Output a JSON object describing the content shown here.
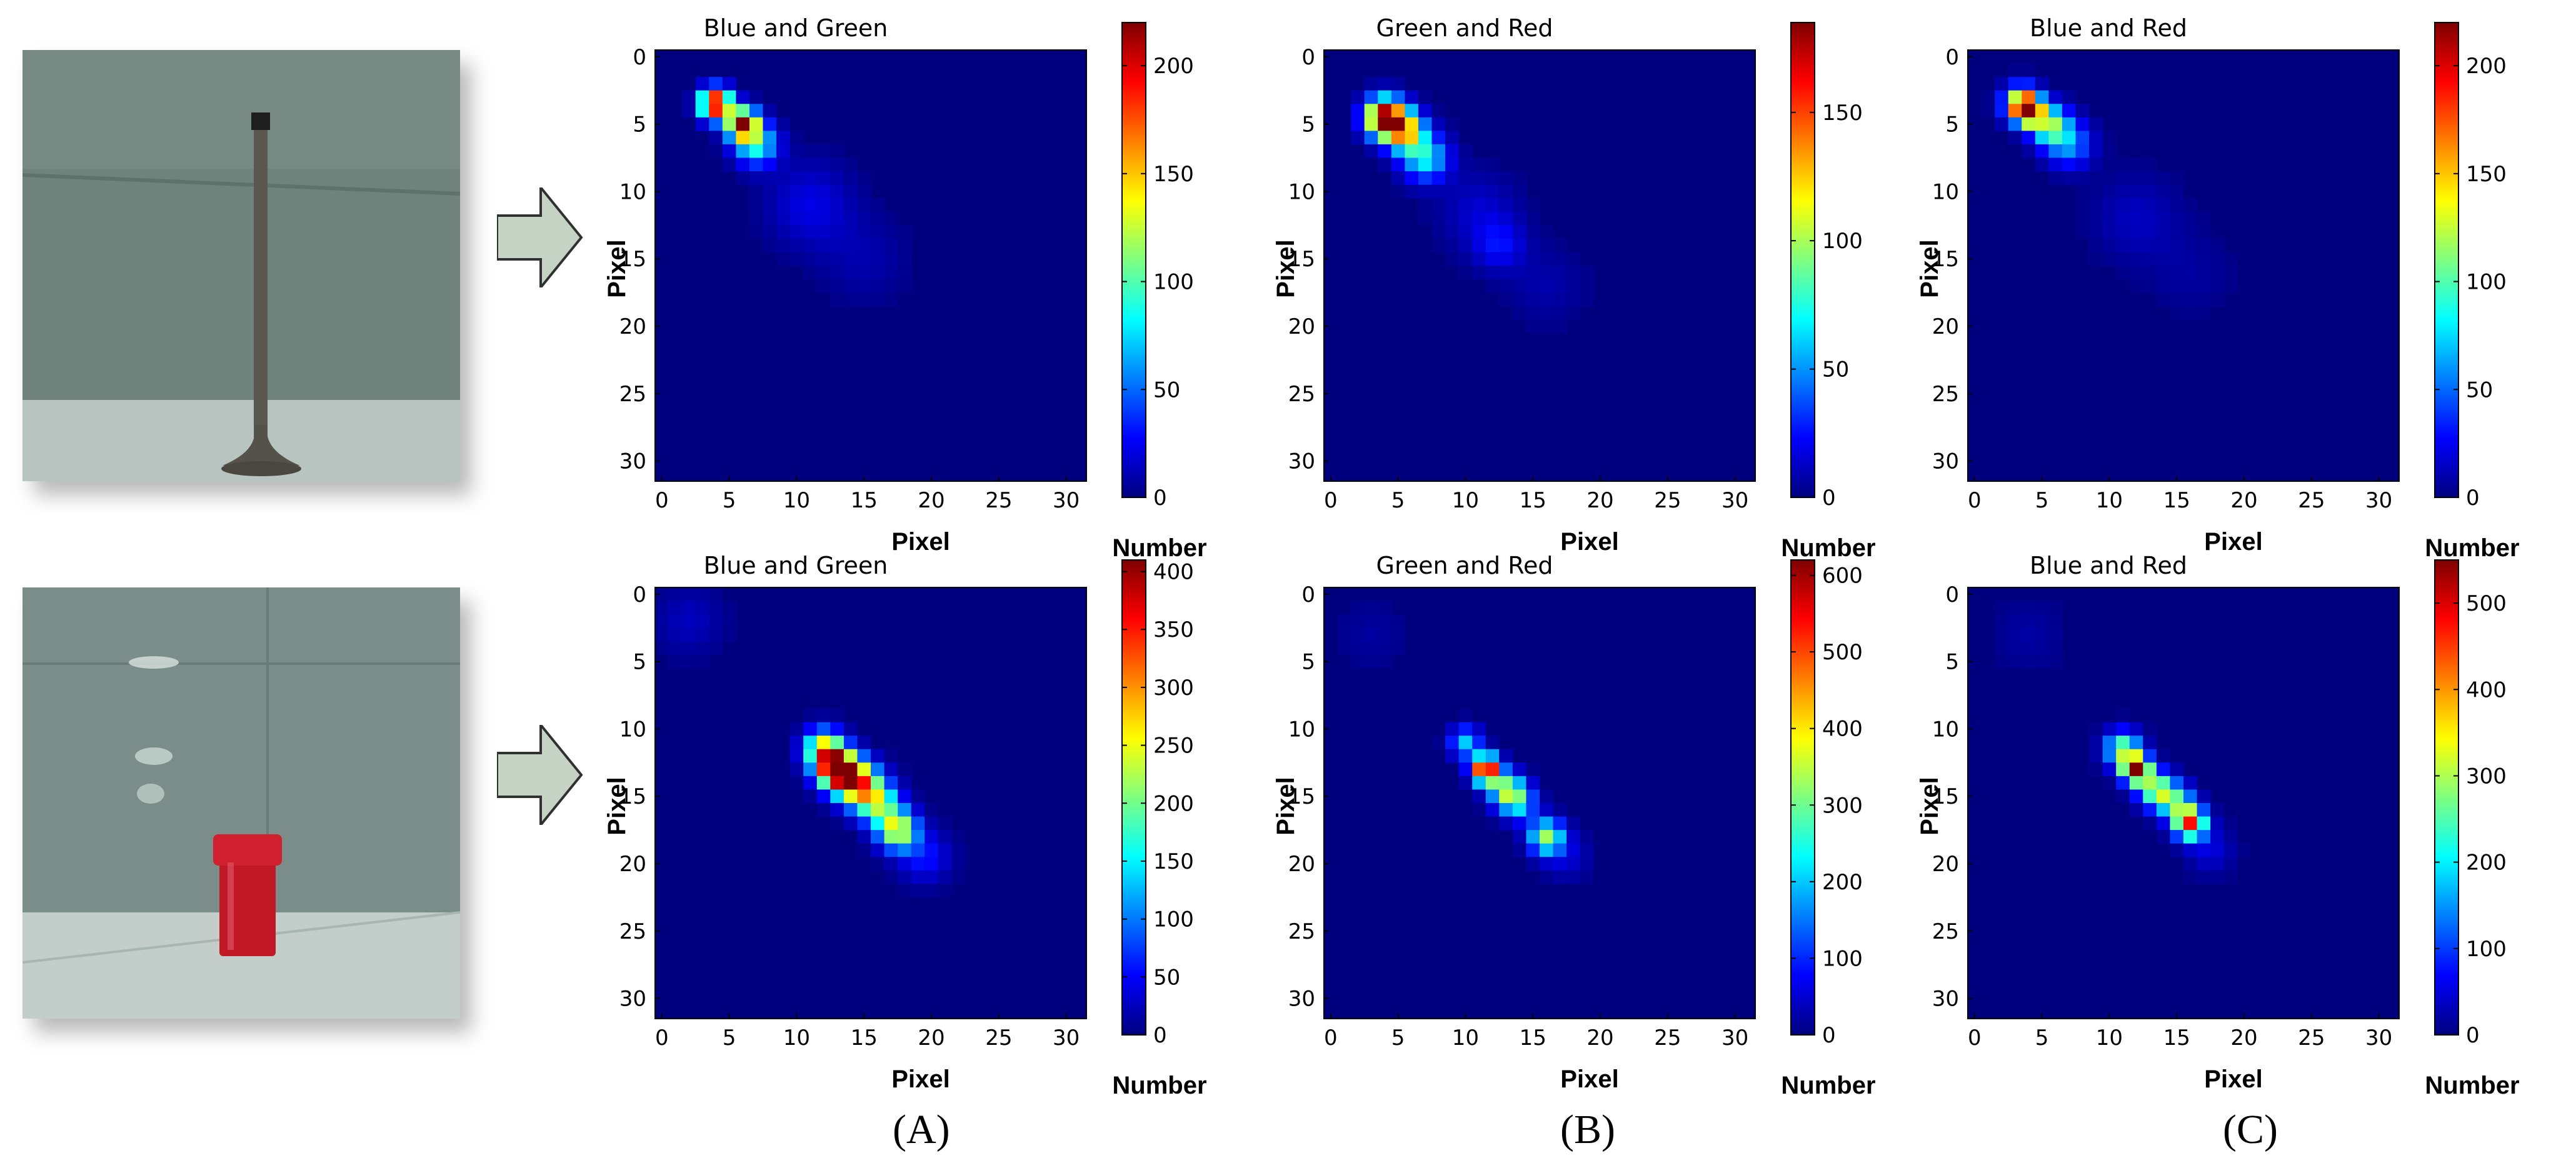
{
  "palette": {
    "colormap_stops": [
      "#00007f",
      "#0000ff",
      "#007fff",
      "#00ffff",
      "#7fff7f",
      "#ffff00",
      "#ff7f00",
      "#ff0000",
      "#7f0000"
    ]
  },
  "photos": [
    {
      "subject": "metal-valve",
      "wall": "#6f827c",
      "floor": "#b7c4c0",
      "object": "#5a5650"
    },
    {
      "subject": "red-cylinder-container",
      "wall": "#7a8d88",
      "floor": "#c3ceca",
      "object": "#c01825"
    }
  ],
  "captions": [
    "(A)",
    "(B)",
    "(C)"
  ],
  "chart_data": [
    {
      "type": "heatmap",
      "row": 1,
      "column": "A",
      "title": "Blue and Green",
      "xlabel": "Pixel",
      "ylabel": "Pixel",
      "colorbar_label": "Number",
      "xlim": [
        0,
        31
      ],
      "ylim": [
        31,
        0
      ],
      "xticks": [
        0,
        5,
        10,
        15,
        20,
        25,
        30
      ],
      "yticks": [
        0,
        5,
        10,
        15,
        20,
        25,
        30
      ],
      "colorbar_range": [
        0,
        220
      ],
      "colorbar_ticks": [
        0,
        50,
        100,
        150,
        200
      ],
      "peaks": [
        {
          "x": 4,
          "y": 3.5,
          "value": 220,
          "spread": 0.8
        },
        {
          "x": 6,
          "y": 5,
          "value": 200,
          "spread": 0.8
        },
        {
          "x": 7,
          "y": 6.5,
          "value": 90,
          "spread": 1.1
        },
        {
          "x": 11,
          "y": 11,
          "value": 22,
          "spread": 2.2
        },
        {
          "x": 15,
          "y": 15,
          "value": 10,
          "spread": 2.2
        }
      ]
    },
    {
      "type": "heatmap",
      "row": 1,
      "column": "B",
      "title": "Green and Red",
      "xlabel": "Pixel",
      "ylabel": "Pixel",
      "colorbar_label": "Number",
      "xlim": [
        0,
        31
      ],
      "ylim": [
        31,
        0
      ],
      "xticks": [
        0,
        5,
        10,
        15,
        20,
        25,
        30
      ],
      "yticks": [
        0,
        5,
        10,
        15,
        20,
        25,
        30
      ],
      "colorbar_range": [
        0,
        185
      ],
      "colorbar_ticks": [
        0,
        50,
        100,
        150
      ],
      "peaks": [
        {
          "x": 4,
          "y": 4.5,
          "value": 185,
          "spread": 1.0
        },
        {
          "x": 5.5,
          "y": 5.5,
          "value": 120,
          "spread": 1.0
        },
        {
          "x": 7,
          "y": 7.5,
          "value": 70,
          "spread": 1.2
        },
        {
          "x": 12.5,
          "y": 14,
          "value": 22,
          "spread": 1.3
        },
        {
          "x": 11,
          "y": 11.5,
          "value": 14,
          "spread": 2.0
        },
        {
          "x": 16,
          "y": 17,
          "value": 8,
          "spread": 2.0
        }
      ]
    },
    {
      "type": "heatmap",
      "row": 1,
      "column": "C",
      "title": "Blue and Red",
      "xlabel": "Pixel",
      "ylabel": "Pixel",
      "colorbar_label": "Number",
      "xlim": [
        0,
        31
      ],
      "ylim": [
        31,
        0
      ],
      "xticks": [
        0,
        5,
        10,
        15,
        20,
        25,
        30
      ],
      "yticks": [
        0,
        5,
        10,
        15,
        20,
        25,
        30
      ],
      "colorbar_range": [
        0,
        220
      ],
      "colorbar_ticks": [
        0,
        50,
        100,
        150,
        200
      ],
      "peaks": [
        {
          "x": 3.5,
          "y": 3.5,
          "value": 150,
          "spread": 0.9
        },
        {
          "x": 4,
          "y": 4,
          "value": 220,
          "spread": 0.6
        },
        {
          "x": 5.5,
          "y": 5,
          "value": 110,
          "spread": 1.0
        },
        {
          "x": 7,
          "y": 6.5,
          "value": 60,
          "spread": 1.2
        },
        {
          "x": 12,
          "y": 12,
          "value": 14,
          "spread": 2.2
        },
        {
          "x": 16,
          "y": 16,
          "value": 7,
          "spread": 2.2
        }
      ]
    },
    {
      "type": "heatmap",
      "row": 2,
      "column": "A",
      "title": "Blue and Green",
      "xlabel": "Pixel",
      "ylabel": "Pixel",
      "colorbar_label": "Number",
      "xlim": [
        0,
        31
      ],
      "ylim": [
        31,
        0
      ],
      "xticks": [
        0,
        5,
        10,
        15,
        20,
        25,
        30
      ],
      "yticks": [
        0,
        5,
        10,
        15,
        20,
        25,
        30
      ],
      "colorbar_range": [
        0,
        410
      ],
      "colorbar_ticks": [
        0,
        50,
        100,
        150,
        200,
        250,
        300,
        350,
        400
      ],
      "peaks": [
        {
          "x": 12,
          "y": 11.5,
          "value": 250,
          "spread": 1.0
        },
        {
          "x": 13,
          "y": 13,
          "value": 410,
          "spread": 1.0
        },
        {
          "x": 14.5,
          "y": 14,
          "value": 300,
          "spread": 1.1
        },
        {
          "x": 16,
          "y": 15.5,
          "value": 200,
          "spread": 1.1
        },
        {
          "x": 17.5,
          "y": 17.5,
          "value": 250,
          "spread": 1.0
        },
        {
          "x": 19.5,
          "y": 19.5,
          "value": 60,
          "spread": 1.3
        },
        {
          "x": 2,
          "y": 2,
          "value": 25,
          "spread": 1.8
        }
      ]
    },
    {
      "type": "heatmap",
      "row": 2,
      "column": "B",
      "title": "Green and Red",
      "xlabel": "Pixel",
      "ylabel": "Pixel",
      "colorbar_label": "Number",
      "xlim": [
        0,
        31
      ],
      "ylim": [
        31,
        0
      ],
      "xticks": [
        0,
        5,
        10,
        15,
        20,
        25,
        30
      ],
      "yticks": [
        0,
        5,
        10,
        15,
        20,
        25,
        30
      ],
      "colorbar_range": [
        0,
        620
      ],
      "colorbar_ticks": [
        0,
        100,
        200,
        300,
        400,
        500,
        600
      ],
      "peaks": [
        {
          "x": 10,
          "y": 11,
          "value": 200,
          "spread": 0.8
        },
        {
          "x": 11.5,
          "y": 13,
          "value": 620,
          "spread": 0.7
        },
        {
          "x": 13,
          "y": 14.5,
          "value": 300,
          "spread": 0.9
        },
        {
          "x": 14,
          "y": 15.5,
          "value": 200,
          "spread": 0.9
        },
        {
          "x": 16,
          "y": 18,
          "value": 320,
          "spread": 0.9
        },
        {
          "x": 17.5,
          "y": 19.5,
          "value": 50,
          "spread": 1.2
        },
        {
          "x": 3,
          "y": 3,
          "value": 20,
          "spread": 1.8
        }
      ]
    },
    {
      "type": "heatmap",
      "row": 2,
      "column": "C",
      "title": "Blue and Red",
      "xlabel": "Pixel",
      "ylabel": "Pixel",
      "colorbar_label": "Number",
      "xlim": [
        0,
        31
      ],
      "ylim": [
        31,
        0
      ],
      "xticks": [
        0,
        5,
        10,
        15,
        20,
        25,
        30
      ],
      "yticks": [
        0,
        5,
        10,
        15,
        20,
        25,
        30
      ],
      "colorbar_range": [
        0,
        550
      ],
      "colorbar_ticks": [
        0,
        100,
        200,
        300,
        400,
        500
      ],
      "peaks": [
        {
          "x": 11,
          "y": 11.5,
          "value": 280,
          "spread": 0.9
        },
        {
          "x": 12,
          "y": 13,
          "value": 550,
          "spread": 0.7
        },
        {
          "x": 13.5,
          "y": 14.5,
          "value": 300,
          "spread": 0.9
        },
        {
          "x": 15,
          "y": 15.5,
          "value": 220,
          "spread": 0.9
        },
        {
          "x": 16,
          "y": 17,
          "value": 440,
          "spread": 0.8
        },
        {
          "x": 17.5,
          "y": 19,
          "value": 50,
          "spread": 1.2
        },
        {
          "x": 4,
          "y": 3,
          "value": 20,
          "spread": 1.8
        }
      ]
    }
  ]
}
